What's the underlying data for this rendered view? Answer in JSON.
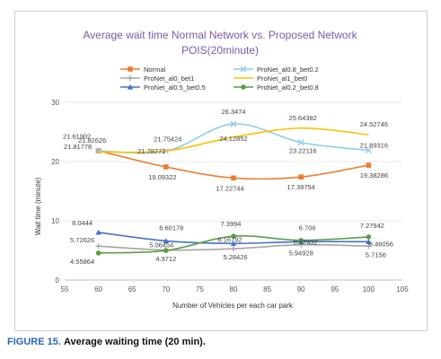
{
  "caption": {
    "label": "FIGURE 15.",
    "text": "Average waiting time (20 min)."
  },
  "chart_data": {
    "type": "line",
    "title_line1": "Average wait time Normal Network vs. Proposed Network",
    "title_line2": "POIS(20minute)",
    "title_color": "#7b5aa6",
    "xlabel": "Number of Vehicles per each car park",
    "ylabel": "Wait time (minute)",
    "xlim": [
      55,
      105
    ],
    "ylim": [
      0,
      30
    ],
    "x_ticks": [
      55,
      60,
      65,
      70,
      75,
      80,
      85,
      90,
      95,
      100,
      105
    ],
    "y_ticks": [
      0,
      10,
      20,
      30
    ],
    "grid": true,
    "legend_position": "top",
    "x": [
      60,
      70,
      80,
      90,
      100
    ],
    "series": [
      {
        "name": "Normal",
        "color": "#ed7d31",
        "marker": "square",
        "values": [
          21.82626,
          19.09322,
          17.22744,
          17.39754,
          19.38286
        ],
        "labels": [
          "21.82626",
          "19.09322",
          "17.22744",
          "17.39754",
          "19.38286"
        ]
      },
      {
        "name": "ProNet_al0.8_bet0.2",
        "color": "#8ecbf0",
        "marker": "x",
        "values": [
          21.81778,
          21.75424,
          26.3474,
          23.22116,
          21.89316
        ],
        "labels": [
          "21.81778",
          "21.75424",
          "26.3474",
          "23.22116",
          "21.89316"
        ]
      },
      {
        "name": "ProNet_al0_bet1",
        "color": "#a5a5a5",
        "marker": "plus",
        "values": [
          5.72626,
          5.06454,
          5.28426,
          5.94928,
          5.7156
        ],
        "labels": [
          "5.72626",
          "5.06454",
          "5.28426",
          "5.94928",
          "5.7156"
        ]
      },
      {
        "name": "ProNet_al1_bet0",
        "color": "#ffc000",
        "marker": "none",
        "values": [
          21.61902,
          21.78772,
          24.12852,
          25.64382,
          24.52746
        ],
        "labels": [
          "21.61902",
          "21.78772",
          "24.12852",
          "25.64382",
          "24.52746"
        ]
      },
      {
        "name": "ProNet_al0.5_bet0.5",
        "color": "#4472c4",
        "marker": "triangle",
        "values": [
          8.0444,
          6.60178,
          6.16792,
          6.47432,
          6.46056
        ],
        "labels": [
          "8.0444",
          "6.60178",
          "6.16792",
          "6.47432",
          "6.46056"
        ]
      },
      {
        "name": "ProNet_al0.2_bet0.8",
        "color": "#5b9e48",
        "marker": "circle",
        "values": [
          4.55864,
          4.9712,
          7.3994,
          6.706,
          7.27942
        ],
        "labels": [
          "4.55864",
          "4.9712",
          "7.3994",
          "6.706",
          "7.27942"
        ]
      }
    ]
  }
}
